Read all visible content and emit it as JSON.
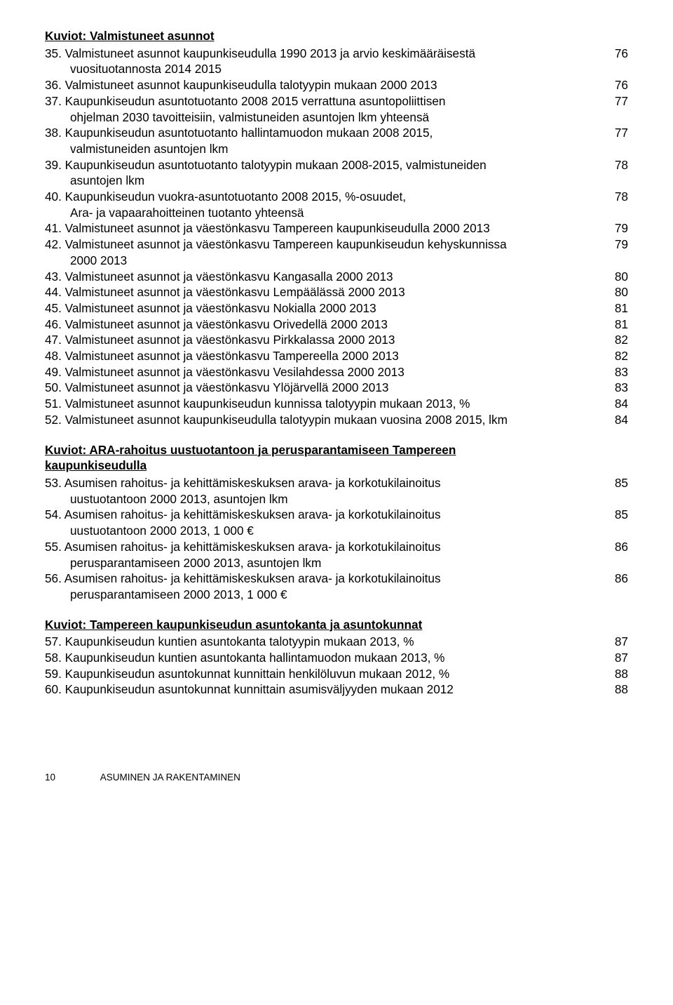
{
  "sections": [
    {
      "heading": "Kuviot: Valmistuneet asunnot",
      "heading_parts": [
        "Kuviot",
        ": ",
        "Valmistuneet asunnot"
      ],
      "first": true,
      "entries": [
        {
          "num": "35.",
          "lines": [
            "Valmistuneet asunnot kaupunkiseudulla 1990 2013 ja arvio keskimääräisestä",
            "vuosituotannosta 2014 2015"
          ],
          "page": "76"
        },
        {
          "num": "36.",
          "lines": [
            "Valmistuneet asunnot kaupunkiseudulla talotyypin mukaan 2000 2013"
          ],
          "page": "76"
        },
        {
          "num": "37.",
          "lines": [
            "Kaupunkiseudun asuntotuotanto 2008 2015 verrattuna asuntopoliittisen",
            "ohjelman 2030 tavoitteisiin, valmistuneiden asuntojen lkm yhteensä"
          ],
          "page": "77"
        },
        {
          "num": "38.",
          "lines": [
            "Kaupunkiseudun asuntotuotanto hallintamuodon mukaan 2008 2015,",
            "valmistuneiden asuntojen lkm"
          ],
          "page": "77"
        },
        {
          "num": "39.",
          "lines": [
            "Kaupunkiseudun asuntotuotanto talotyypin mukaan 2008-2015, valmistuneiden",
            "asuntojen lkm"
          ],
          "page": "78"
        },
        {
          "num": "40.",
          "lines": [
            "Kaupunkiseudun vuokra-asuntotuotanto 2008 2015, %-osuudet,",
            "Ara- ja vapaarahoitteinen tuotanto yhteensä"
          ],
          "page": "78"
        },
        {
          "num": "41.",
          "lines": [
            "Valmistuneet asunnot ja väestönkasvu Tampereen kaupunkiseudulla 2000 2013"
          ],
          "page": "79"
        },
        {
          "num": "42.",
          "lines": [
            "Valmistuneet asunnot ja väestönkasvu Tampereen kaupunkiseudun kehyskunnissa",
            "2000 2013"
          ],
          "page": "79"
        },
        {
          "num": "43.",
          "lines": [
            "Valmistuneet asunnot ja väestönkasvu Kangasalla 2000 2013"
          ],
          "page": "80"
        },
        {
          "num": "44.",
          "lines": [
            "Valmistuneet asunnot ja väestönkasvu Lempäälässä 2000 2013"
          ],
          "page": "80"
        },
        {
          "num": "45.",
          "lines": [
            "Valmistuneet asunnot ja väestönkasvu Nokialla 2000 2013"
          ],
          "page": "81"
        },
        {
          "num": "46.",
          "lines": [
            "Valmistuneet asunnot ja väestönkasvu Orivedellä 2000 2013"
          ],
          "page": "81"
        },
        {
          "num": "47.",
          "lines": [
            "Valmistuneet asunnot ja väestönkasvu Pirkkalassa 2000 2013"
          ],
          "page": "82"
        },
        {
          "num": "48.",
          "lines": [
            "Valmistuneet asunnot ja väestönkasvu Tampereella 2000 2013"
          ],
          "page": "82"
        },
        {
          "num": "49.",
          "lines": [
            "Valmistuneet asunnot ja väestönkasvu Vesilahdessa 2000 2013"
          ],
          "page": "83"
        },
        {
          "num": "50.",
          "lines": [
            "Valmistuneet asunnot ja väestönkasvu Ylöjärvellä 2000 2013"
          ],
          "page": "83"
        },
        {
          "num": "51.",
          "lines": [
            "Valmistuneet asunnot kaupunkiseudun kunnissa talotyypin mukaan 2013, %"
          ],
          "page": "84"
        },
        {
          "num": "52.",
          "lines": [
            "Valmistuneet asunnot kaupunkiseudulla talotyypin mukaan vuosina 2008 2015, lkm"
          ],
          "page": "84"
        }
      ]
    },
    {
      "heading_parts": [
        "Kuviot",
        ": ",
        "ARA-rahoitus uustuotantoon ja perusparantamiseen Tampereen",
        "kaupunkiseudulla"
      ],
      "first": false,
      "entries": [
        {
          "num": "53.",
          "lines": [
            "Asumisen rahoitus- ja kehittämiskeskuksen arava- ja korkotukilainoitus",
            "uustuotantoon 2000 2013, asuntojen lkm"
          ],
          "page": "85"
        },
        {
          "num": "54.",
          "lines": [
            "Asumisen rahoitus- ja kehittämiskeskuksen arava- ja korkotukilainoitus",
            "uustuotantoon 2000 2013, 1 000 €"
          ],
          "page": "85"
        },
        {
          "num": "55.",
          "lines": [
            "Asumisen rahoitus- ja kehittämiskeskuksen arava- ja korkotukilainoitus",
            "perusparantamiseen 2000 2013, asuntojen lkm"
          ],
          "page": "86"
        },
        {
          "num": "56.",
          "lines": [
            "Asumisen rahoitus- ja kehittämiskeskuksen arava- ja korkotukilainoitus",
            "perusparantamiseen 2000 2013, 1 000 €"
          ],
          "page": "86"
        }
      ]
    },
    {
      "heading_parts": [
        "Kuviot",
        ": ",
        "Tampereen kaupunkiseudun asuntokanta ja asuntokunnat"
      ],
      "first": false,
      "entries": [
        {
          "num": "57.",
          "lines": [
            "Kaupunkiseudun kuntien asuntokanta talotyypin mukaan 2013, %"
          ],
          "page": "87"
        },
        {
          "num": "58.",
          "lines": [
            "Kaupunkiseudun kuntien asuntokanta hallintamuodon mukaan 2013, %"
          ],
          "page": "87"
        },
        {
          "num": "59.",
          "lines": [
            "Kaupunkiseudun asuntokunnat kunnittain henkilöluvun mukaan 2012, %"
          ],
          "page": "88"
        },
        {
          "num": "60.",
          "lines": [
            "Kaupunkiseudun asuntokunnat kunnittain asumisväljyyden mukaan 2012"
          ],
          "page": "88"
        }
      ]
    }
  ],
  "footer": {
    "page_number": "10",
    "text": "ASUMINEN JA RAKENTAMINEN"
  }
}
